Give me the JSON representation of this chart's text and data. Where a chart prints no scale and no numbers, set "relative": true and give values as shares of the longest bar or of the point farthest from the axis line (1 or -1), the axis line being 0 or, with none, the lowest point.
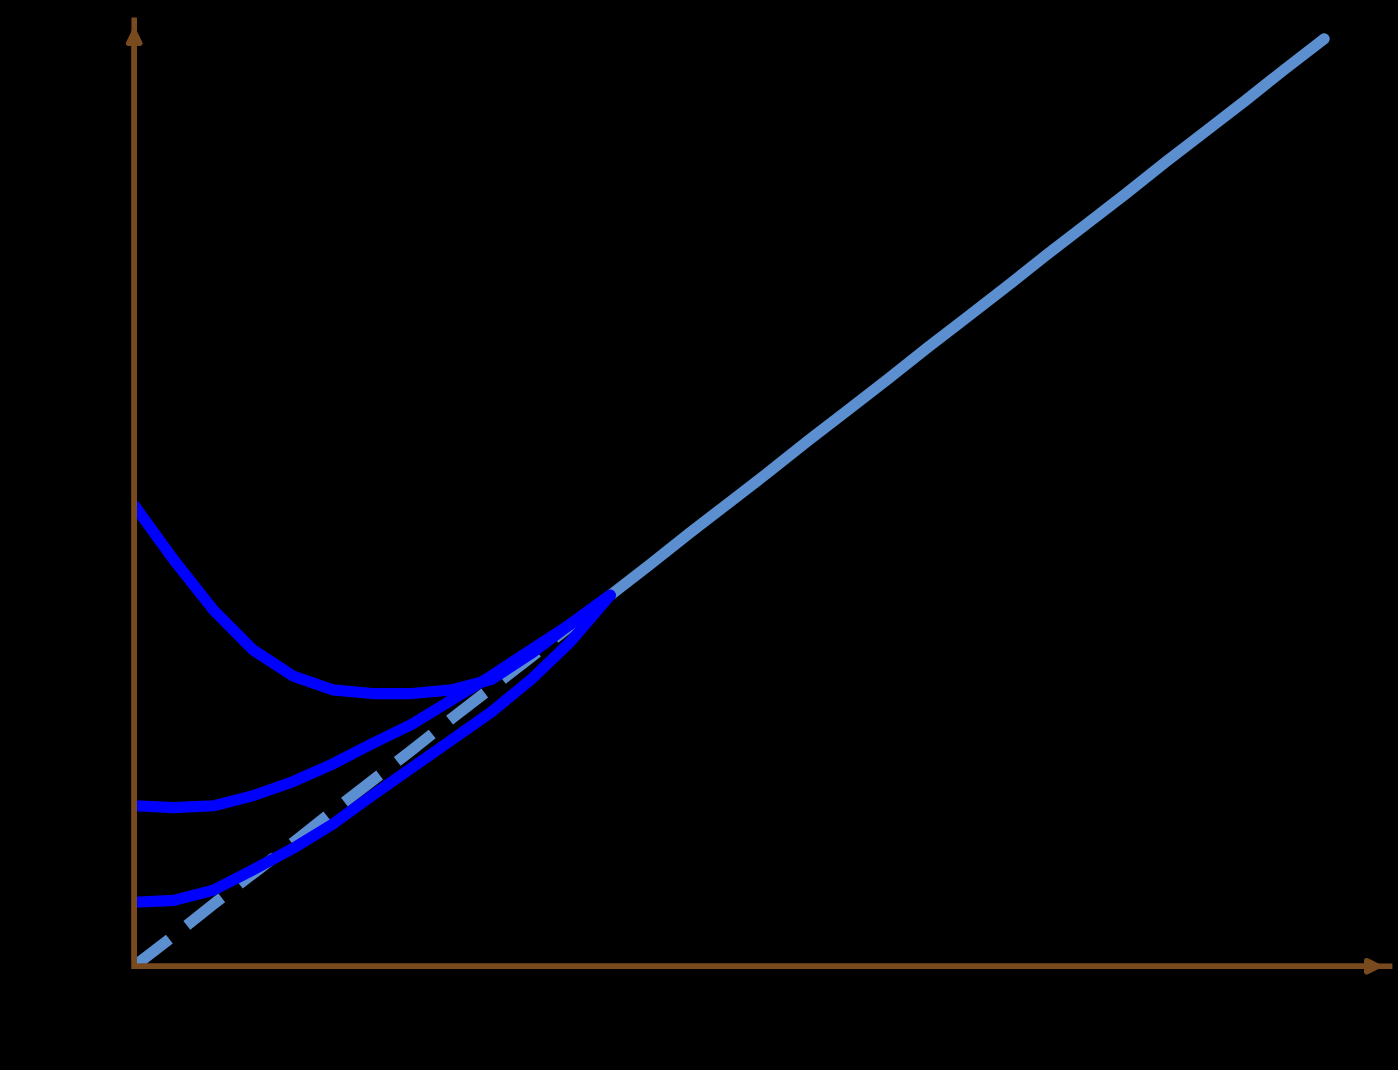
{
  "chart_data": {
    "type": "line",
    "relative": true,
    "legend": false,
    "categories": [
      null,
      null,
      null,
      null,
      null,
      null,
      null,
      null,
      null,
      null,
      null,
      null,
      null,
      null,
      null,
      null,
      null,
      null,
      null,
      null,
      null,
      null,
      null,
      null,
      null,
      null,
      null,
      null,
      null,
      null,
      null
    ],
    "series": [
      {
        "color": "#5b8fd0",
        "line_style": "dashed",
        "values": [
          0,
          0.033,
          0.067,
          0.1,
          0.133,
          0.167,
          0.2,
          0.233,
          0.267,
          0.3,
          0.333,
          0.367,
          0.4,
          null,
          null,
          null,
          null,
          null,
          null,
          null,
          null,
          null,
          null,
          null,
          null,
          null,
          null,
          null,
          null,
          null,
          null
        ]
      },
      {
        "color": "#5b8fd0",
        "line_style": "solid",
        "values": [
          null,
          null,
          null,
          null,
          null,
          null,
          null,
          null,
          null,
          null,
          null,
          null,
          0.4,
          0.433,
          0.467,
          0.5,
          0.533,
          0.567,
          0.6,
          0.633,
          0.667,
          0.7,
          0.733,
          0.767,
          0.8,
          0.833,
          0.867,
          0.9,
          0.933,
          0.967,
          1
        ]
      },
      {
        "color": "#0000ff",
        "line_style": "solid",
        "values": [
          0.497,
          0.438,
          0.384,
          0.341,
          0.313,
          0.298,
          0.294,
          0.294,
          0.298,
          0.309,
          0.337,
          0.369,
          0.4,
          null,
          null,
          null,
          null,
          null,
          null,
          null,
          null,
          null,
          null,
          null,
          null,
          null,
          null,
          null,
          null,
          null,
          null
        ]
      },
      {
        "color": "#0000ff",
        "line_style": "solid",
        "values": [
          0.173,
          0.171,
          0.173,
          0.184,
          0.199,
          0.218,
          0.24,
          0.261,
          0.287,
          0.313,
          0.341,
          0.369,
          0.4,
          null,
          null,
          null,
          null,
          null,
          null,
          null,
          null,
          null,
          null,
          null,
          null,
          null,
          null,
          null,
          null,
          null,
          null
        ]
      },
      {
        "color": "#0000ff",
        "line_style": "solid",
        "values": [
          0.069,
          0.071,
          0.082,
          0.104,
          0.127,
          0.153,
          0.184,
          0.214,
          0.244,
          0.274,
          0.309,
          0.35,
          0.4,
          null,
          null,
          null,
          null,
          null,
          null,
          null,
          null,
          null,
          null,
          null,
          null,
          null,
          null,
          null,
          null,
          null,
          null
        ]
      }
    ]
  }
}
